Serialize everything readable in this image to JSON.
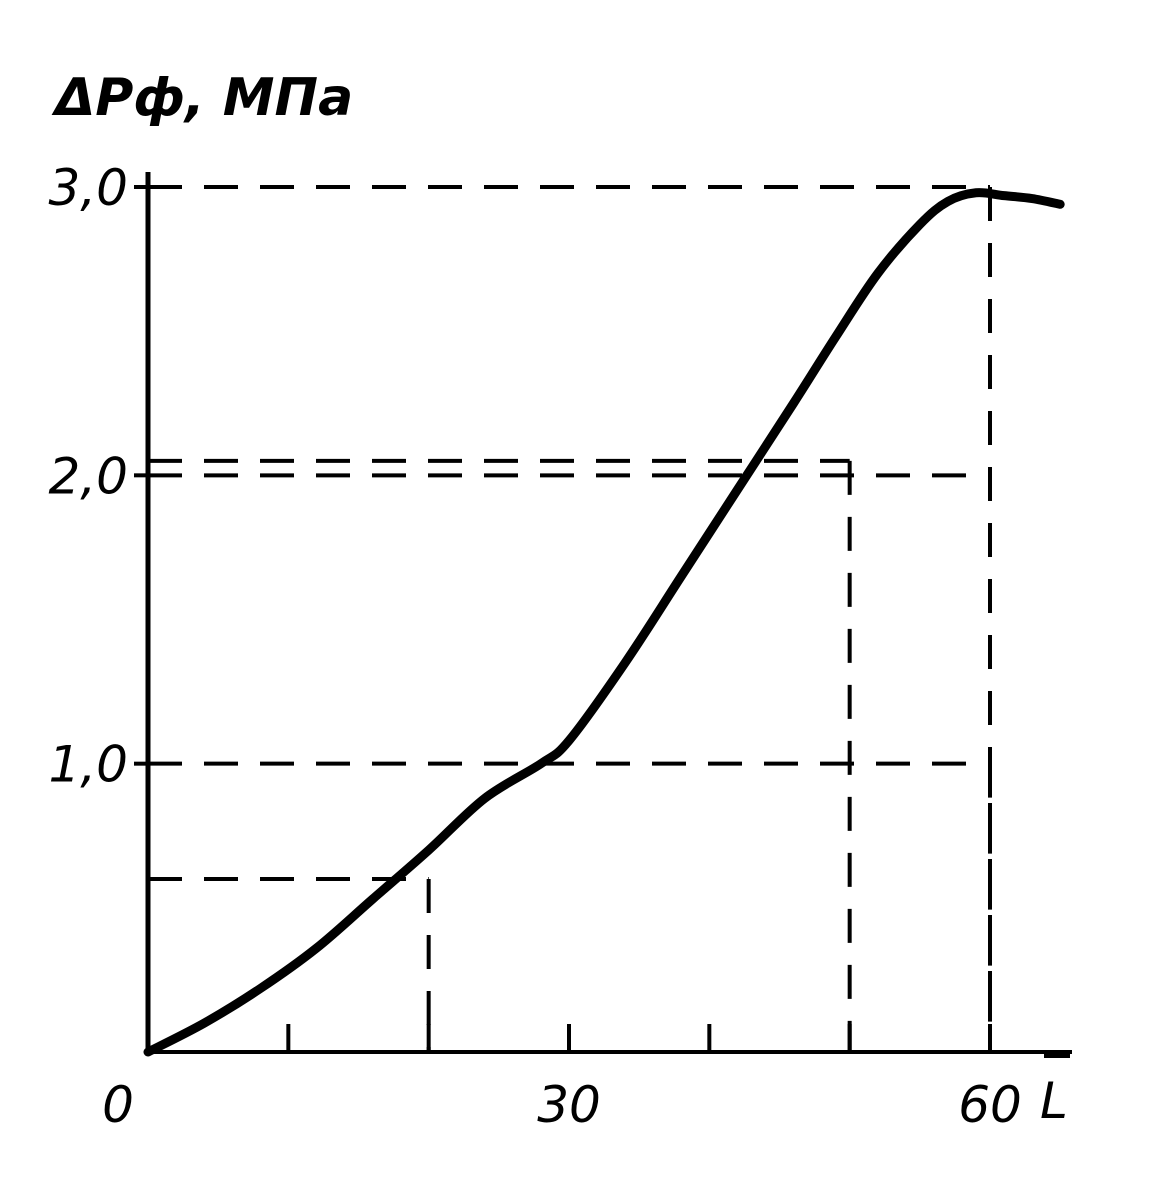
{
  "chart_data": {
    "type": "line",
    "ylabel": "ΔPф, МПа",
    "xlabel": "L",
    "xlim": [
      0,
      65
    ],
    "ylim": [
      0,
      3.0
    ],
    "xticks": [
      0,
      10,
      20,
      30,
      40,
      50,
      60
    ],
    "xtick_labels": [
      {
        "value": 0,
        "label": "0"
      },
      {
        "value": 30,
        "label": "30"
      },
      {
        "value": 60,
        "label": "60"
      }
    ],
    "yticks": [
      1.0,
      2.0,
      3.0
    ],
    "ytick_labels": [
      "1,0",
      "2,0",
      "3,0"
    ],
    "grid": "dashed guide lines",
    "series": [
      {
        "x": [
          0,
          4,
          8,
          12,
          16,
          20,
          24,
          28,
          30,
          34,
          38,
          42,
          46,
          49,
          52,
          55,
          57,
          59,
          61,
          63,
          65
        ],
        "y": [
          0,
          0.1,
          0.22,
          0.36,
          0.53,
          0.7,
          0.88,
          1.0,
          1.08,
          1.35,
          1.65,
          1.95,
          2.25,
          2.48,
          2.7,
          2.87,
          2.95,
          2.98,
          2.97,
          2.96,
          2.94
        ]
      }
    ],
    "guides": [
      {
        "x": 20,
        "y": 0.6
      },
      {
        "x": 50,
        "y": 2.05
      },
      {
        "x": 60,
        "y": 3.0
      },
      {
        "x": 60,
        "y": 1.0
      }
    ],
    "colors": {
      "line": "#000000",
      "background": "#ffffff"
    }
  }
}
